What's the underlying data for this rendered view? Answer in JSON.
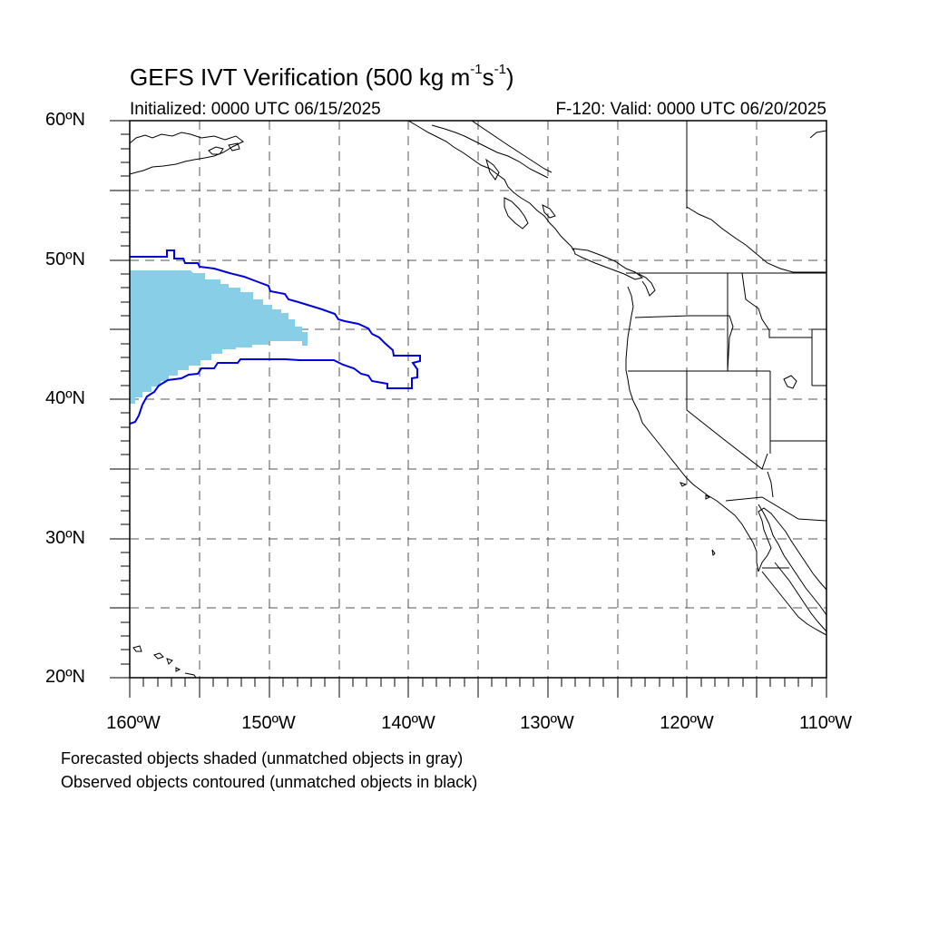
{
  "title": {
    "main": "GEFS IVT Verification (500 kg m",
    "sup1": "-1",
    "mid": "s",
    "sup2": "-1",
    "end": ")"
  },
  "subtitle": {
    "initialized": "Initialized: 0000 UTC 06/15/2025",
    "valid": "F-120: Valid: 0000 UTC 06/20/2025"
  },
  "axes": {
    "lat_labels": [
      {
        "lat": 60,
        "text": "60ºN"
      },
      {
        "lat": 50,
        "text": "50ºN"
      },
      {
        "lat": 40,
        "text": "40ºN"
      },
      {
        "lat": 30,
        "text": "30ºN"
      },
      {
        "lat": 20,
        "text": "20ºN"
      }
    ],
    "lon_labels": [
      {
        "lon": -160,
        "text": "160ºW"
      },
      {
        "lon": -150,
        "text": "150ºW"
      },
      {
        "lon": -140,
        "text": "140ºW"
      },
      {
        "lon": -130,
        "text": "130ºW"
      },
      {
        "lon": -120,
        "text": "120ºW"
      },
      {
        "lon": -110,
        "text": "110ºW"
      }
    ],
    "lat_range": [
      20,
      60
    ],
    "lon_range": [
      -160,
      -110
    ],
    "grid": "dashed every 5°"
  },
  "notes": {
    "forecast": "Forecasted objects shaded (unmatched objects in gray)",
    "observed": "Observed objects contoured (unmatched objects in black)"
  },
  "colors": {
    "forecast_fill": "#87CEE6",
    "observed_contour": "#0000DD",
    "coastline": "#000000",
    "grid": "#555555"
  }
}
